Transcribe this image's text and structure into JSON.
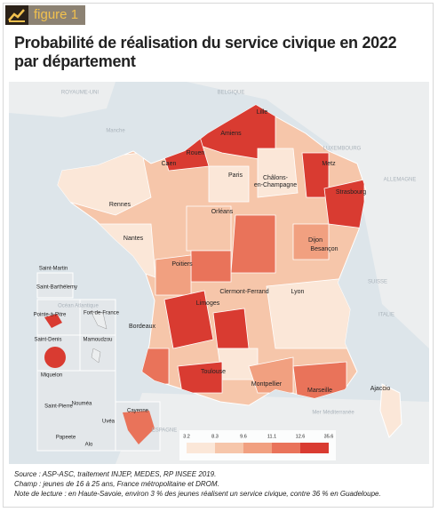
{
  "header": {
    "label": "figure 1",
    "title": [
      "Probabilité de réalisation du service civique en 2022",
      "par département"
    ]
  },
  "map": {
    "geo_labels": [
      "ROYAUME-UNI",
      "BELGIQUE",
      "Manche",
      "LUXEMBOURG",
      "ALLEMAGNE",
      "SUISSE",
      "ITALIE",
      "Océan Atlantique",
      "ESPAGNE",
      "Mer Méditerranée"
    ],
    "cities": [
      "Lille",
      "Amiens",
      "Rouen",
      "Caen",
      "Paris",
      "Metz",
      "Châlons-",
      "en-Champagne",
      "Strasbourg",
      "Rennes",
      "Orléans",
      "Nantes",
      "Dijon",
      "Besançon",
      "Poitiers",
      "Clermont-Ferrand",
      "Lyon",
      "Limoges",
      "Bordeaux",
      "Toulouse",
      "Montpellier",
      "Marseille",
      "Ajaccio"
    ],
    "overseas": [
      "Saint-Martin",
      "Saint-Barthélemy",
      "Pointe-à-Pitre",
      "Fort-de-France",
      "Saint-Denis",
      "Mamoudzou",
      "Miquelon",
      "Saint-Pierre",
      "Nouméa",
      "Uvéa",
      "Papeete",
      "Alo",
      "Cayenne"
    ],
    "legend": {
      "labels": [
        "3.2",
        "8.3",
        "9.6",
        "11.1",
        "12.6",
        "35.6"
      ],
      "colors": [
        "#fbe7d8",
        "#f6c6aa",
        "#f1a080",
        "#e9735a",
        "#d93b31"
      ]
    }
  },
  "notes": [
    "Source : ASP-ASC, traitement INJEP, MEDES, RP INSEE 2019.",
    "Champ : jeunes de 16 à 25 ans, France métropolitaine et DROM.",
    "Note de lecture : en Haute-Savoie, environ 3 % des jeunes réalisent un service civique, contre 36 % en Guadeloupe."
  ]
}
